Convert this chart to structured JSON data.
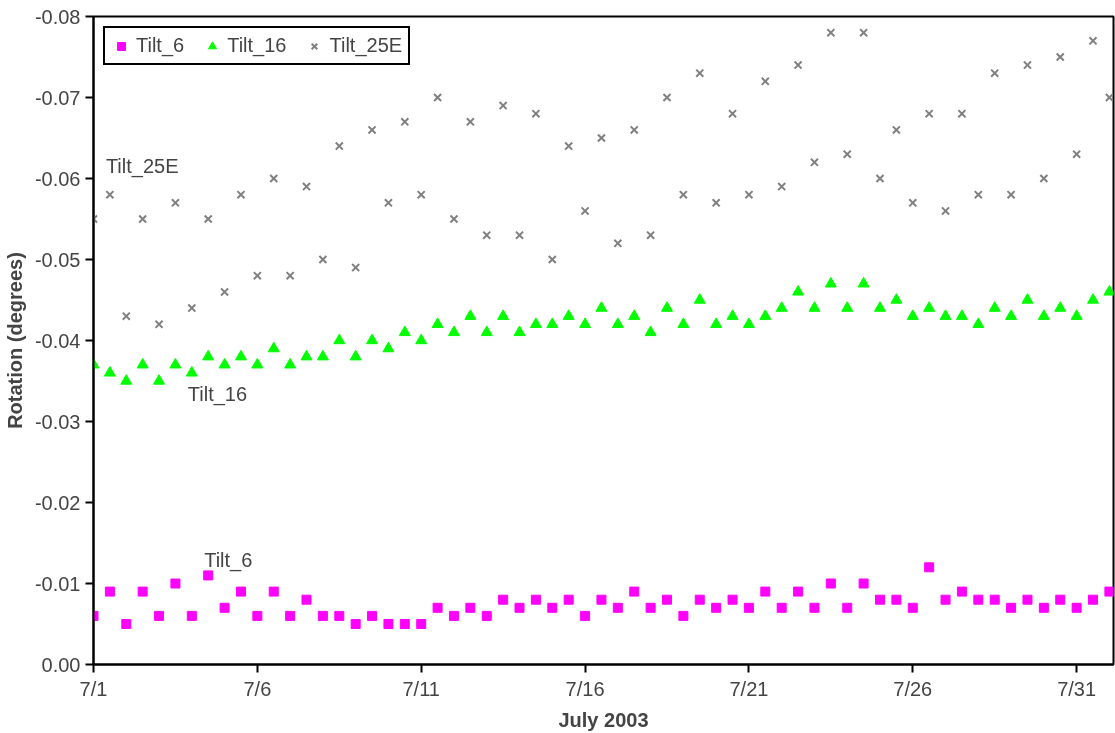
{
  "chart_data": {
    "type": "scatter",
    "xlabel": "July 2003",
    "ylabel": "Rotation (degrees)",
    "x": [
      "2003-07-01T00:00",
      "2003-07-01T12:00",
      "2003-07-02T00:00",
      "2003-07-02T12:00",
      "2003-07-03T00:00",
      "2003-07-03T12:00",
      "2003-07-04T00:00",
      "2003-07-04T12:00",
      "2003-07-05T00:00",
      "2003-07-05T12:00",
      "2003-07-06T00:00",
      "2003-07-06T12:00",
      "2003-07-07T00:00",
      "2003-07-07T12:00",
      "2003-07-08T00:00",
      "2003-07-08T12:00",
      "2003-07-09T00:00",
      "2003-07-09T12:00",
      "2003-07-10T00:00",
      "2003-07-10T12:00",
      "2003-07-11T00:00",
      "2003-07-11T12:00",
      "2003-07-12T00:00",
      "2003-07-12T12:00",
      "2003-07-13T00:00",
      "2003-07-13T12:00",
      "2003-07-14T00:00",
      "2003-07-14T12:00",
      "2003-07-15T00:00",
      "2003-07-15T12:00",
      "2003-07-16T00:00",
      "2003-07-16T12:00",
      "2003-07-17T00:00",
      "2003-07-17T12:00",
      "2003-07-18T00:00",
      "2003-07-18T12:00",
      "2003-07-19T00:00",
      "2003-07-19T12:00",
      "2003-07-20T00:00",
      "2003-07-20T12:00",
      "2003-07-21T00:00",
      "2003-07-21T12:00",
      "2003-07-22T00:00",
      "2003-07-22T12:00",
      "2003-07-23T00:00",
      "2003-07-23T12:00",
      "2003-07-24T00:00",
      "2003-07-24T12:00",
      "2003-07-25T00:00",
      "2003-07-25T12:00",
      "2003-07-26T00:00",
      "2003-07-26T12:00",
      "2003-07-27T00:00",
      "2003-07-27T12:00",
      "2003-07-28T00:00",
      "2003-07-28T12:00",
      "2003-07-29T00:00",
      "2003-07-29T12:00",
      "2003-07-30T00:00",
      "2003-07-30T12:00",
      "2003-07-31T00:00",
      "2003-07-31T12:00",
      "2003-08-01T00:00"
    ],
    "series": [
      {
        "name": "Tilt_6",
        "color": "#ff00ff",
        "marker": "square",
        "values": [
          -0.006,
          -0.009,
          -0.005,
          -0.009,
          -0.006,
          -0.01,
          -0.006,
          -0.011,
          -0.007,
          -0.009,
          -0.006,
          -0.009,
          -0.006,
          -0.008,
          -0.006,
          -0.006,
          -0.005,
          -0.006,
          -0.005,
          -0.005,
          -0.005,
          -0.007,
          -0.006,
          -0.007,
          -0.006,
          -0.008,
          -0.007,
          -0.008,
          -0.007,
          -0.008,
          -0.006,
          -0.008,
          -0.007,
          -0.009,
          -0.007,
          -0.008,
          -0.006,
          -0.008,
          -0.007,
          -0.008,
          -0.007,
          -0.009,
          -0.007,
          -0.009,
          -0.007,
          -0.01,
          -0.007,
          -0.01,
          -0.008,
          -0.008,
          -0.007,
          -0.012,
          -0.008,
          -0.009,
          -0.008,
          -0.008,
          -0.007,
          -0.008,
          -0.007,
          -0.008,
          -0.007,
          -0.008,
          -0.009
        ]
      },
      {
        "name": "Tilt_16",
        "color": "#00ff00",
        "marker": "triangle",
        "values": [
          -0.037,
          -0.036,
          -0.035,
          -0.037,
          -0.035,
          -0.037,
          -0.036,
          -0.038,
          -0.037,
          -0.038,
          -0.037,
          -0.039,
          -0.037,
          -0.038,
          -0.038,
          -0.04,
          -0.038,
          -0.04,
          -0.039,
          -0.041,
          -0.04,
          -0.042,
          -0.041,
          -0.043,
          -0.041,
          -0.043,
          -0.041,
          -0.042,
          -0.042,
          -0.043,
          -0.042,
          -0.044,
          -0.042,
          -0.043,
          -0.041,
          -0.044,
          -0.042,
          -0.045,
          -0.042,
          -0.043,
          -0.042,
          -0.043,
          -0.044,
          -0.046,
          -0.044,
          -0.047,
          -0.044,
          -0.047,
          -0.044,
          -0.045,
          -0.043,
          -0.044,
          -0.043,
          -0.043,
          -0.042,
          -0.044,
          -0.043,
          -0.045,
          -0.043,
          -0.044,
          -0.043,
          -0.045,
          -0.046
        ]
      },
      {
        "name": "Tilt_25E",
        "color": "#808080",
        "marker": "cross",
        "values": [
          -0.055,
          -0.058,
          -0.043,
          -0.055,
          -0.042,
          -0.057,
          -0.044,
          -0.055,
          -0.046,
          -0.058,
          -0.048,
          -0.06,
          -0.048,
          -0.059,
          -0.05,
          -0.064,
          -0.049,
          -0.066,
          -0.057,
          -0.067,
          -0.058,
          -0.07,
          -0.055,
          -0.067,
          -0.053,
          -0.069,
          -0.053,
          -0.068,
          -0.05,
          -0.064,
          -0.056,
          -0.065,
          -0.052,
          -0.066,
          -0.053,
          -0.07,
          -0.058,
          -0.073,
          -0.057,
          -0.068,
          -0.058,
          -0.072,
          -0.059,
          -0.074,
          -0.062,
          -0.078,
          -0.063,
          -0.078,
          -0.06,
          -0.066,
          -0.057,
          -0.068,
          -0.056,
          -0.068,
          -0.058,
          -0.073,
          -0.058,
          -0.074,
          -0.06,
          -0.075,
          -0.063,
          -0.077,
          -0.07
        ]
      }
    ],
    "annotations": [
      "Tilt_25E",
      "Tilt_16",
      "Tilt_6"
    ],
    "xlim": [
      "2003-07-01T00:00",
      "2003-08-01T03:00"
    ],
    "xticks": [
      {
        "value": "2003-07-01",
        "label": "7/1"
      },
      {
        "value": "2003-07-06",
        "label": "7/6"
      },
      {
        "value": "2003-07-11",
        "label": "7/11"
      },
      {
        "value": "2003-07-16",
        "label": "7/16"
      },
      {
        "value": "2003-07-21",
        "label": "7/21"
      },
      {
        "value": "2003-07-26",
        "label": "7/26"
      },
      {
        "value": "2003-07-31",
        "label": "7/31"
      }
    ],
    "ylim": [
      0,
      -0.08
    ],
    "yticks": [
      {
        "value": 0,
        "label": "0.00"
      },
      {
        "value": -0.01,
        "label": "-0.01"
      },
      {
        "value": -0.02,
        "label": "-0.02"
      },
      {
        "value": -0.03,
        "label": "-0.03"
      },
      {
        "value": -0.04,
        "label": "-0.04"
      },
      {
        "value": -0.05,
        "label": "-0.05"
      },
      {
        "value": -0.06,
        "label": "-0.06"
      },
      {
        "value": -0.07,
        "label": "-0.07"
      },
      {
        "value": -0.08,
        "label": "-0.08"
      }
    ],
    "grid": false,
    "legend": "top left"
  }
}
